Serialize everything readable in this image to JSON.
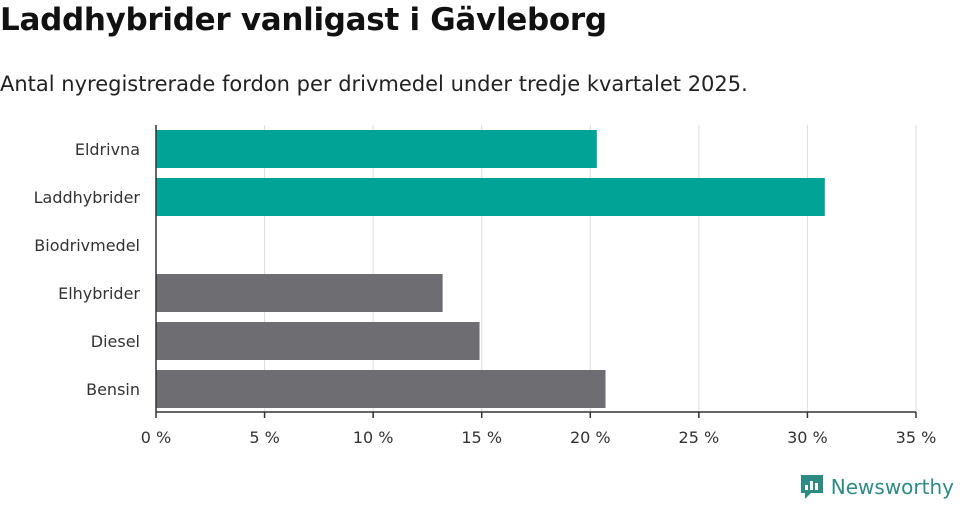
{
  "chart_data": {
    "type": "bar",
    "orientation": "horizontal",
    "title": "Laddhybrider vanligast i Gävleborg",
    "subtitle": "Antal nyregistrerade fordon per drivmedel under tredje kvartalet 2025.",
    "categories": [
      "Eldrivna",
      "Laddhybrider",
      "Biodrivmedel",
      "Elhybrider",
      "Diesel",
      "Bensin"
    ],
    "values": [
      20.3,
      30.8,
      0,
      13.2,
      14.9,
      20.7
    ],
    "highlight": [
      true,
      true,
      false,
      false,
      false,
      false
    ],
    "xlim": [
      0,
      35
    ],
    "xticks": [
      0,
      5,
      10,
      15,
      20,
      25,
      30,
      35
    ],
    "xtick_labels": [
      "0 %",
      "5 %",
      "10 %",
      "15 %",
      "20 %",
      "25 %",
      "30 %",
      "35 %"
    ],
    "xlabel": "",
    "ylabel": "",
    "grid": true,
    "colors": {
      "highlight": "#00a396",
      "default": "#6e6d72",
      "grid": "#dddddd",
      "axis": "#333333"
    }
  },
  "brand": {
    "name": "Newsworthy",
    "color": "#2e8b83"
  }
}
